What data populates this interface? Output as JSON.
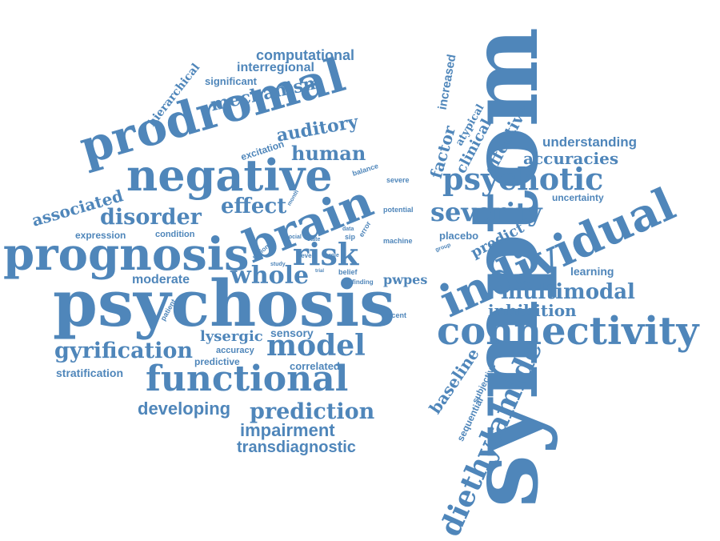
{
  "cloud": {
    "color": "#4f86ba",
    "background": "#ffffff",
    "words": {
      "symptom": "symptom",
      "psychosis": "psychosis",
      "prognosis": "prognosis",
      "prodromal": "prodromal",
      "negative": "negative",
      "brain": "brain",
      "individual": "individual",
      "connectivity": "connectivity",
      "functional": "functional",
      "diethylamide": "diethylamide",
      "psychotic": "psychotic",
      "severity": "severity",
      "model": "model",
      "risk": "risk",
      "whole": "whole",
      "gyrification": "gyrification",
      "prediction": "prediction",
      "multimodal": "multimodal",
      "developing": "developing",
      "impairment": "impairment",
      "transdiagnostic": "transdiagnostic",
      "disorder": "disorder",
      "human": "human",
      "auditory": "auditory",
      "mechanism": "mechanism",
      "computational": "computational",
      "interregional": "interregional",
      "significant": "significant",
      "hierarchical": "hierarchical",
      "associated": "associated",
      "effect": "effect",
      "expression": "expression",
      "condition": "condition",
      "moderate": "moderate",
      "lysergic": "lysergic",
      "sensory": "sensory",
      "accuracy": "accuracy",
      "predictive": "predictive",
      "correlated": "correlated",
      "stratification": "stratification",
      "excitation": "excitation",
      "balance": "balance",
      "month": "month",
      "severe": "severe",
      "potential": "potential",
      "error": "error",
      "machine": "machine",
      "sip": "sip",
      "state": "state",
      "data": "data",
      "social": "social",
      "level": "level",
      "role": "role",
      "study": "study",
      "trial": "trial",
      "region": "region",
      "belief": "belief",
      "finding": "finding",
      "pwpes": "pwpes",
      "recent": "recent",
      "patient": "patient",
      "placebo": "placebo",
      "group": "group",
      "predict": "predict",
      "learning": "learning",
      "inhibition": "inhibition",
      "understanding": "understanding",
      "accuracies": "accuracies",
      "uncertainty": "uncertainty",
      "effective": "effective",
      "atypical": "atypical",
      "clinical": "clinical",
      "factor": "factor",
      "increased": "increased",
      "baseline": "baseline",
      "sequential": "sequential",
      "subjective": "subjective"
    }
  }
}
